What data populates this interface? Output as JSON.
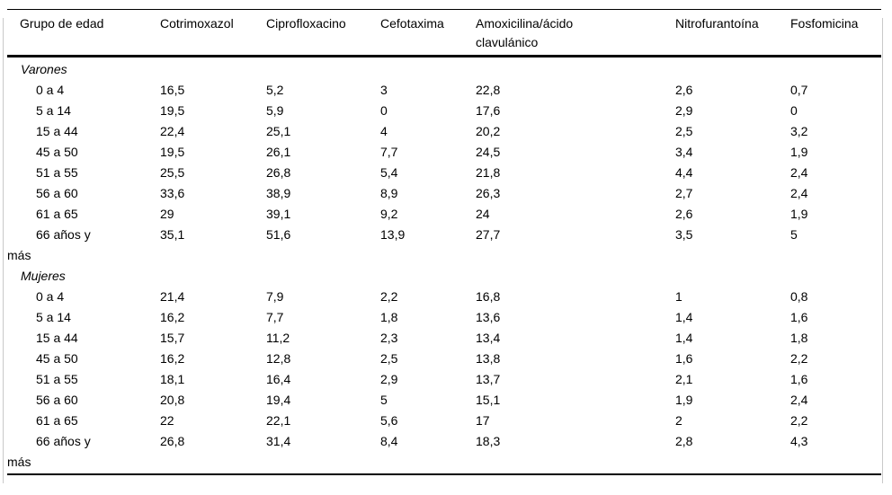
{
  "table": {
    "columns": [
      "Grupo de edad",
      "Cotrimoxazol",
      "Ciprofloxacino",
      "Cefotaxima",
      "Amoxicilina/ácido clavulánico",
      "Nitrofurantoína",
      "Fosfomicina"
    ],
    "sections": [
      {
        "label": "Varones",
        "rows": [
          {
            "label": "0 a 4",
            "values": [
              "16,5",
              "5,2",
              "3",
              "22,8",
              "2,6",
              "0,7"
            ]
          },
          {
            "label": "5 a 14",
            "values": [
              "19,5",
              "5,9",
              "0",
              "17,6",
              "2,9",
              "0"
            ]
          },
          {
            "label": "15 a 44",
            "values": [
              "22,4",
              "25,1",
              "4",
              "20,2",
              "2,5",
              "3,2"
            ]
          },
          {
            "label": "45 a 50",
            "values": [
              "19,5",
              "26,1",
              "7,7",
              "24,5",
              "3,4",
              "1,9"
            ]
          },
          {
            "label": "51 a 55",
            "values": [
              "25,5",
              "26,8",
              "5,4",
              "21,8",
              "4,4",
              "2,4"
            ]
          },
          {
            "label": "56 a 60",
            "values": [
              "33,6",
              "38,9",
              "8,9",
              "26,3",
              "2,7",
              "2,4"
            ]
          },
          {
            "label": "61 a 65",
            "values": [
              "29",
              "39,1",
              "9,2",
              "24",
              "2,6",
              "1,9"
            ]
          },
          {
            "label": "66 años y más",
            "values": [
              "35,1",
              "51,6",
              "13,9",
              "27,7",
              "3,5",
              "5"
            ]
          }
        ]
      },
      {
        "label": "Mujeres",
        "rows": [
          {
            "label": "0 a 4",
            "values": [
              "21,4",
              "7,9",
              "2,2",
              "16,8",
              "1",
              "0,8"
            ]
          },
          {
            "label": "5 a 14",
            "values": [
              "16,2",
              "7,7",
              "1,8",
              "13,6",
              "1,4",
              "1,6"
            ]
          },
          {
            "label": "15 a 44",
            "values": [
              "15,7",
              "11,2",
              "2,3",
              "13,4",
              "1,4",
              "1,8"
            ]
          },
          {
            "label": "45 a 50",
            "values": [
              "16,2",
              "12,8",
              "2,5",
              "13,8",
              "1,6",
              "2,2"
            ]
          },
          {
            "label": "51 a 55",
            "values": [
              "18,1",
              "16,4",
              "2,9",
              "13,7",
              "2,1",
              "1,6"
            ]
          },
          {
            "label": "56 a 60",
            "values": [
              "20,8",
              "19,4",
              "5",
              "15,1",
              "1,9",
              "2,4"
            ]
          },
          {
            "label": "61 a 65",
            "values": [
              "22",
              "22,1",
              "5,6",
              "17",
              "2",
              "2,2"
            ]
          },
          {
            "label": "66 años y más",
            "values": [
              "26,8",
              "31,4",
              "8,4",
              "18,3",
              "2,8",
              "4,3"
            ]
          }
        ]
      }
    ]
  }
}
